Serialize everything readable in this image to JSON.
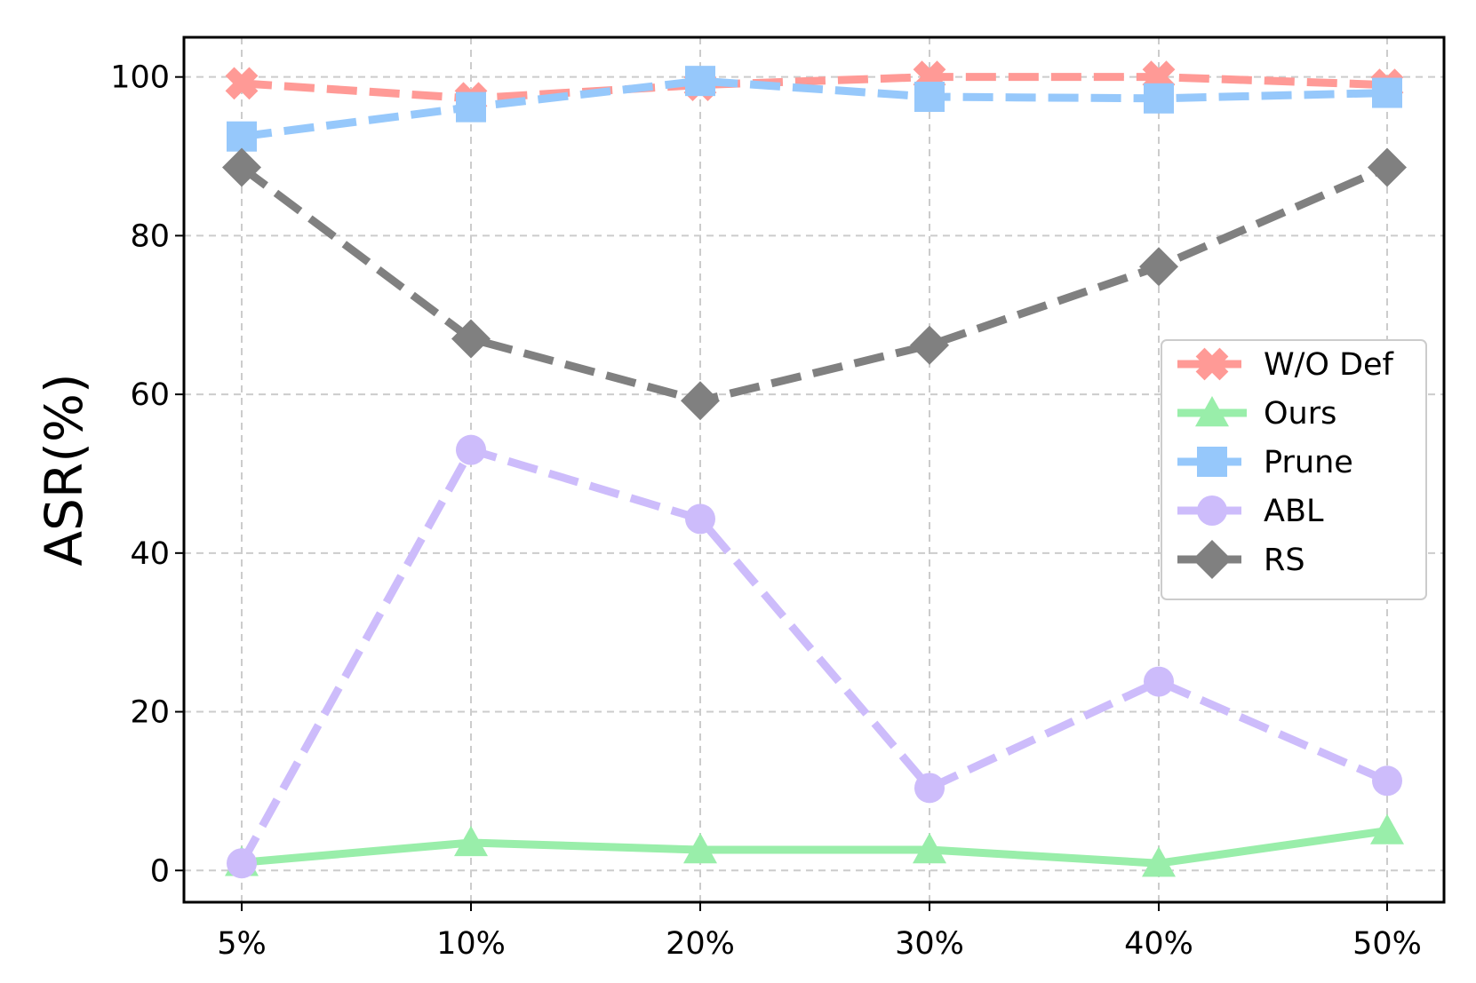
{
  "chart_data": {
    "type": "line",
    "title": "",
    "xlabel": "",
    "ylabel": "ASR(%)",
    "categories": [
      "5%",
      "10%",
      "20%",
      "30%",
      "40%",
      "50%"
    ],
    "yticks": [
      "0",
      "20",
      "40",
      "60",
      "80",
      "100"
    ],
    "ylim": [
      -4,
      105
    ],
    "grid": true,
    "legend_position": "center-right",
    "series": [
      {
        "name": "W/O Def",
        "values": [
          99.2,
          97.3,
          99.0,
          100.0,
          100.0,
          99.0
        ],
        "color": "#ff9a96",
        "marker": "x",
        "linestyle": "dashed"
      },
      {
        "name": "Ours",
        "values": [
          1.0,
          3.5,
          2.6,
          2.6,
          0.9,
          5.0
        ],
        "color": "#99eeaa",
        "marker": "triangle",
        "linestyle": "solid"
      },
      {
        "name": "Prune",
        "values": [
          92.5,
          96.2,
          99.5,
          97.5,
          97.3,
          98.0
        ],
        "color": "#96c8fb",
        "marker": "square",
        "linestyle": "dashed"
      },
      {
        "name": "ABL",
        "values": [
          0.9,
          53.0,
          44.3,
          10.4,
          23.8,
          11.3
        ],
        "color": "#cdbcfb",
        "marker": "circle",
        "linestyle": "dashed"
      },
      {
        "name": "RS",
        "values": [
          88.6,
          67.0,
          59.2,
          66.2,
          76.1,
          88.6
        ],
        "color": "#808080",
        "marker": "diamond",
        "linestyle": "dashed"
      }
    ]
  }
}
